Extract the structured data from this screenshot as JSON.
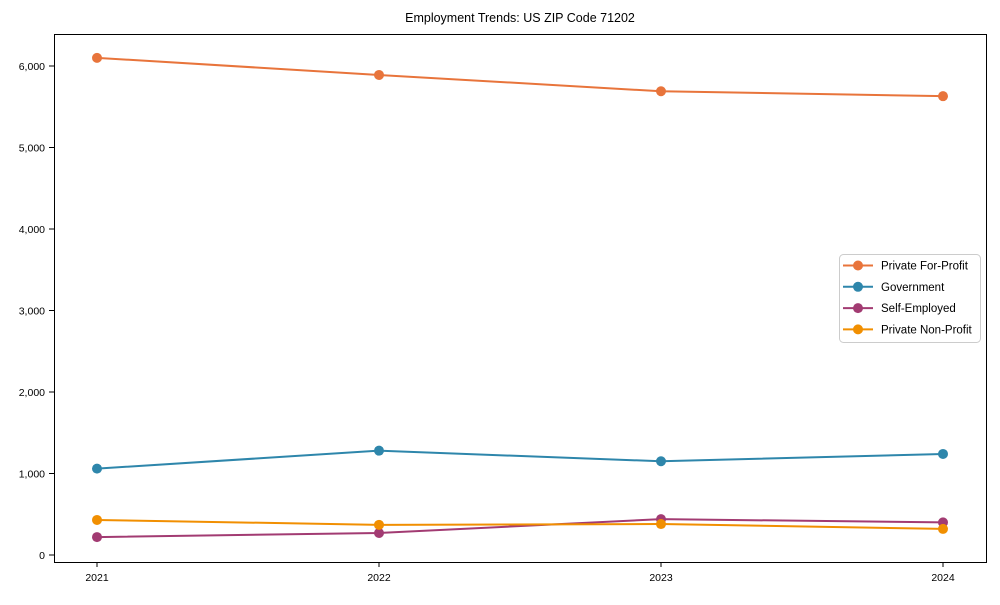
{
  "chart_data": {
    "type": "line",
    "title": "Employment Trends: US ZIP Code 71202",
    "x": [
      2021,
      2022,
      2023,
      2024
    ],
    "xtick_labels": [
      "2021",
      "2022",
      "2023",
      "2024"
    ],
    "series": [
      {
        "name": "Private For-Profit",
        "color": "#E8743B",
        "values": [
          6100,
          5890,
          5690,
          5630
        ]
      },
      {
        "name": "Government",
        "color": "#2E86AB",
        "values": [
          1060,
          1280,
          1150,
          1240
        ]
      },
      {
        "name": "Self-Employed",
        "color": "#A23B72",
        "values": [
          220,
          270,
          440,
          400
        ]
      },
      {
        "name": "Private Non-Profit",
        "color": "#F18F01",
        "values": [
          430,
          370,
          380,
          320
        ]
      }
    ],
    "yticks": [
      0,
      1000,
      2000,
      3000,
      4000,
      5000,
      6000
    ],
    "ytick_labels": [
      "0",
      "1,000",
      "2,000",
      "3,000",
      "4,000",
      "5,000",
      "6,000"
    ],
    "ylim": [
      0,
      6400
    ],
    "xlabel": "",
    "ylabel": "",
    "grid": false,
    "marker": "circle",
    "legend_position": "center-right",
    "legend_border_color": "#cccccc",
    "axis_color": "#000000",
    "background_color": "#ffffff"
  }
}
